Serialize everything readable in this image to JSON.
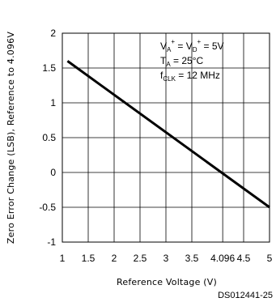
{
  "chart_data": {
    "type": "line",
    "xlabel": "Reference Voltage (V)",
    "ylabel": "Zero Error Change (LSB), Reference to 4.096V",
    "xlim": [
      1,
      5
    ],
    "ylim": [
      -1,
      2
    ],
    "x_ticks": [
      "1",
      "1.5",
      "2",
      "2.5",
      "3",
      "3.5",
      "4.096",
      "4.5",
      "5"
    ],
    "x_tick_values": [
      1,
      1.5,
      2,
      2.5,
      3,
      3.5,
      4.096,
      4.5,
      5
    ],
    "y_ticks": [
      "2",
      "1.5",
      "1",
      "0.5",
      "0",
      "-0.5",
      "-1"
    ],
    "y_tick_values": [
      2,
      1.5,
      1,
      0.5,
      0,
      -0.5,
      -1
    ],
    "grid": true,
    "series": [
      {
        "x": [
          1.1,
          5.0
        ],
        "y": [
          1.6,
          -0.5
        ]
      }
    ],
    "annotations": {
      "line1_main": "V",
      "line1_sub_a": "A",
      "line1_sup_a": "+",
      "line1_mid": " = V",
      "line1_sub_d": "D",
      "line1_sup_d": "+",
      "line1_end": " = 5V",
      "line2_main": "T",
      "line2_sub": "A",
      "line2_end": " = 25°C",
      "line3_main": "f",
      "line3_sub": "CLK",
      "line3_end": " = 12 MHz"
    }
  },
  "figure_code": "DS012441-25"
}
